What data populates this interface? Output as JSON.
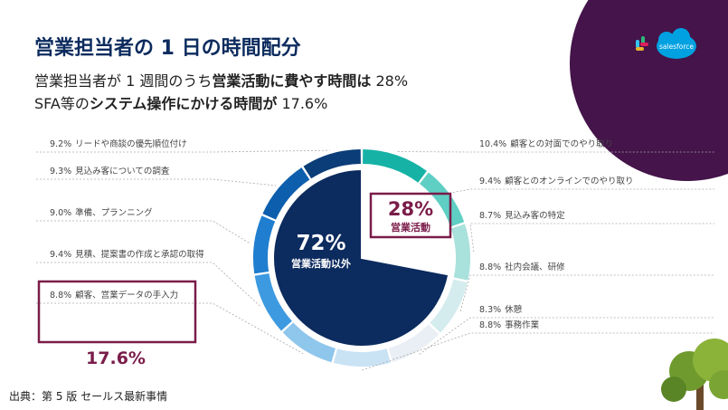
{
  "header": {
    "title": "営業担当者の 1 日の時間配分",
    "subtitle_lines": [
      [
        {
          "text": "営業担当者が 1 週間のうち",
          "bold": false
        },
        {
          "text": "営業活動に費やす時間は",
          "bold": true
        },
        {
          "text": " 28%",
          "bold": false
        }
      ],
      [
        {
          "text": "SFA等の",
          "bold": false
        },
        {
          "text": "システム操作にかける時間が",
          "bold": true
        },
        {
          "text": " 17.6%",
          "bold": false
        }
      ]
    ]
  },
  "logo_text": "salesforce",
  "chart_data": [
    {
      "type": "pie",
      "categories": [
        "営業活動",
        "営業活動以外"
      ],
      "values": [
        28,
        72
      ],
      "value_labels": [
        "28%",
        "72%"
      ],
      "colors": [
        "#ffffff",
        "#0c2b5e"
      ]
    },
    {
      "type": "donut",
      "categories": [
        "顧客との対面でのやり取り",
        "顧客とのオンラインでのやり取り",
        "見込み客の特定",
        "社内会議、研修",
        "休憩",
        "事務作業",
        "顧客、営業データの手入力",
        "見積、提案書の作成と承認の取得",
        "準備、プランニング",
        "見込み客についての調査",
        "リードや商談の優先順位付け"
      ],
      "values": [
        10.4,
        9.4,
        8.7,
        8.8,
        8.3,
        8.8,
        8.8,
        9.4,
        9.0,
        9.3,
        9.2
      ],
      "value_labels": [
        "10.4%",
        "9.4%",
        "8.7%",
        "8.8%",
        "8.3%",
        "8.8%",
        "8.8%",
        "9.4%",
        "9.0%",
        "9.3%",
        "9.2%"
      ],
      "colors": [
        "#17b2a6",
        "#5fcfc4",
        "#a9e1dc",
        "#d5ecee",
        "#e9eff4",
        "#c9e3f5",
        "#8ec6ec",
        "#3d9ae0",
        "#1f7ecf",
        "#0d5ead",
        "#0b3d78"
      ]
    }
  ],
  "highlight_label": "17.6%",
  "source": "出典：第 5 版 セールス最新事情"
}
